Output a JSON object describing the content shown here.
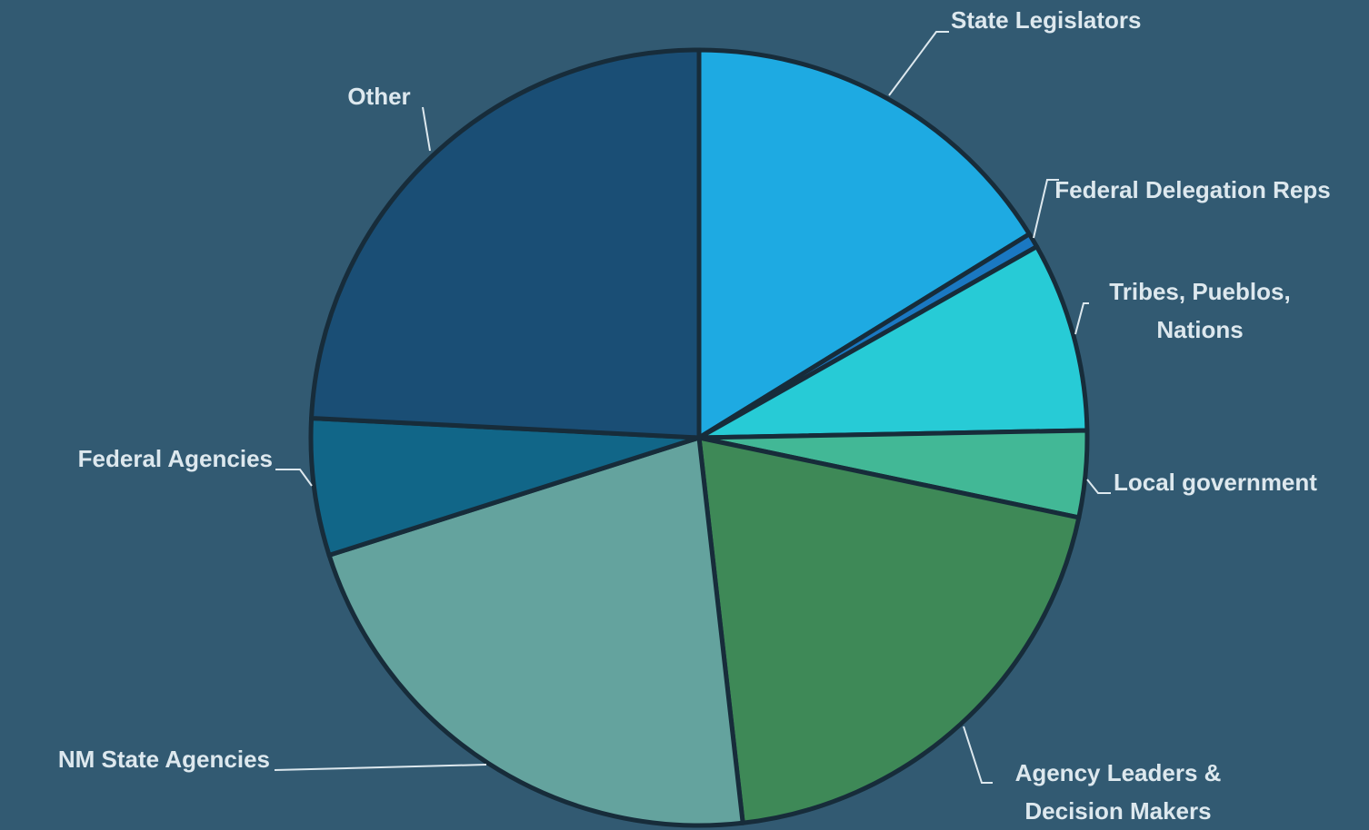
{
  "chart_data": {
    "type": "pie",
    "categories": [
      "State Legislators",
      "Federal Delegation Reps",
      "Tribes, Pueblos, Nations",
      "Local government",
      "Agency Leaders & Decision Makers",
      "NM State Agencies",
      "Federal Agencies",
      "Other"
    ],
    "values": [
      16.2,
      0.6,
      7.9,
      3.6,
      19.9,
      21.9,
      5.7,
      24.2
    ],
    "colors": [
      "#1eaae2",
      "#1a78c2",
      "#27cbd6",
      "#42b896",
      "#3e8957",
      "#64a39e",
      "#116688",
      "#1a4e75"
    ]
  }
}
